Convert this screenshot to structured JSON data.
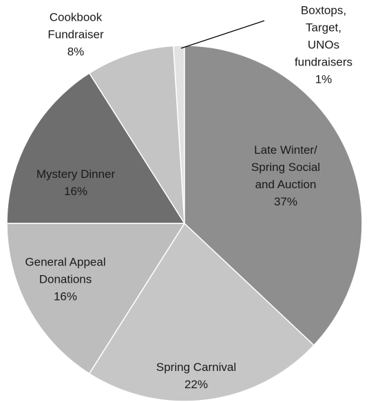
{
  "chart_data": {
    "type": "pie",
    "categories": [
      "Late Winter/\nSpring Social\nand Auction",
      "Spring Carnival",
      "General Appeal\nDonations",
      "Mystery Dinner",
      "Cookbook\nFundraiser",
      "Boxtops, Target,\nUNOs\nfundraisers"
    ],
    "values": [
      37,
      22,
      16,
      16,
      8,
      1
    ],
    "value_labels": [
      "37%",
      "22%",
      "16%",
      "16%",
      "8%",
      "1%"
    ],
    "colors": [
      "#8e8e8e",
      "#c6c6c6",
      "#bdbdbd",
      "#6e6e6e",
      "#c4c4c4",
      "#e2e2e2"
    ]
  }
}
